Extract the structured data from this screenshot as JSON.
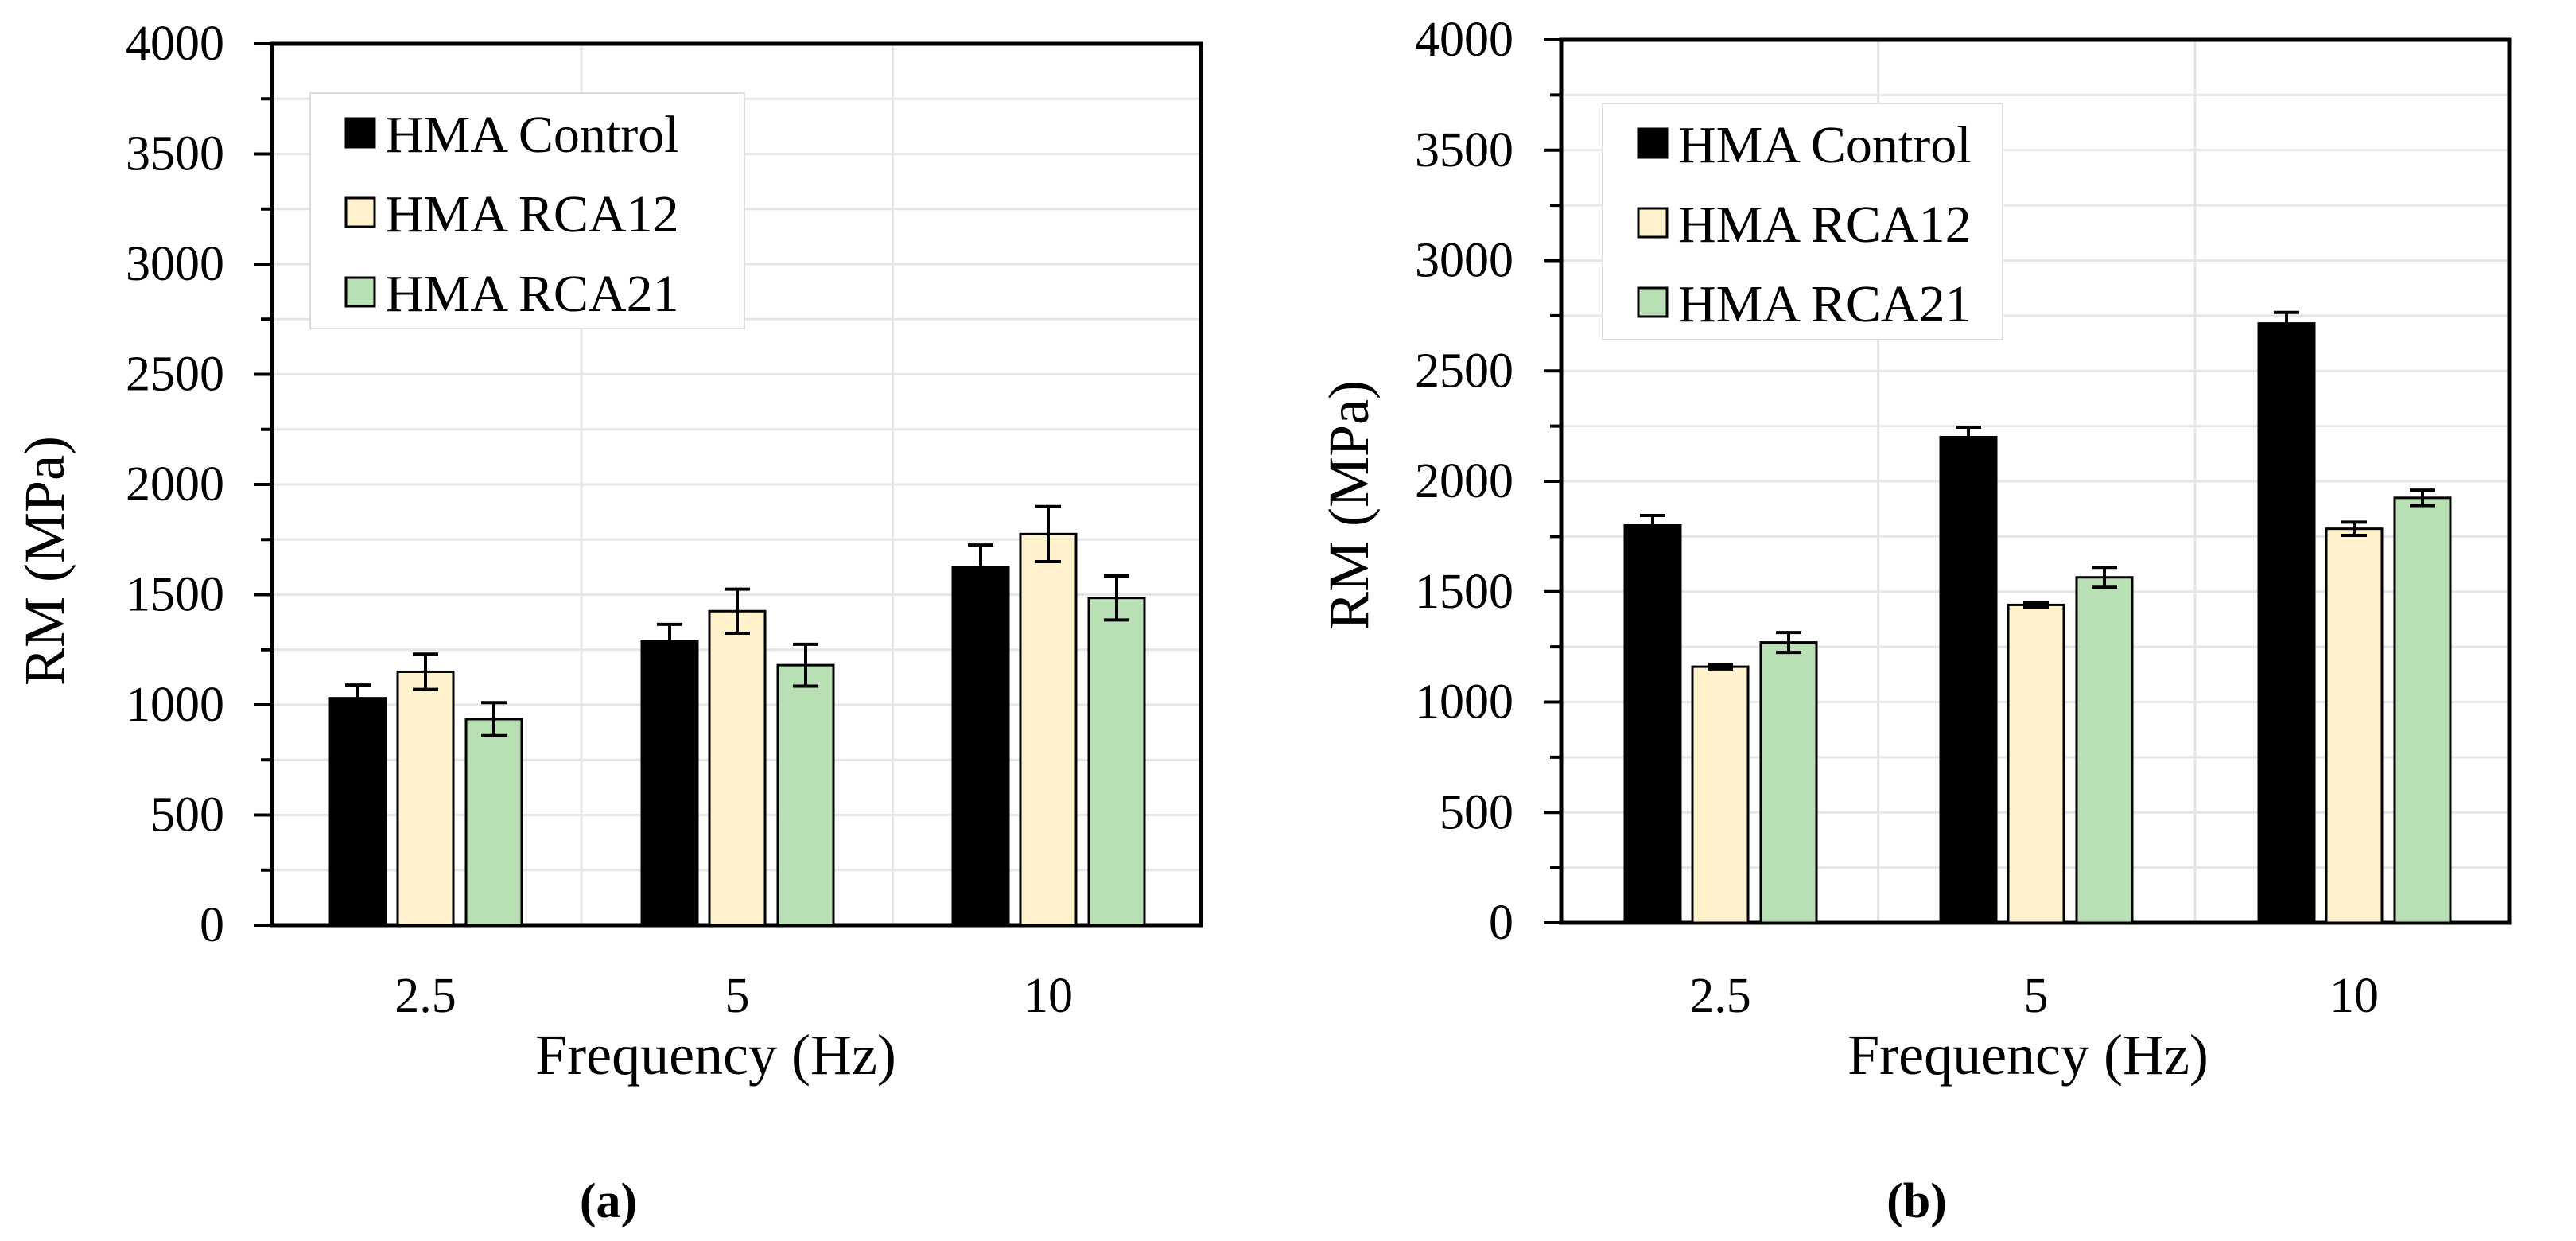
{
  "chart_data": [
    {
      "type": "bar",
      "panel_label": "(a)",
      "xlabel": "Frequency (Hz)",
      "ylabel": "RM (MPa)",
      "categories": [
        "2.5",
        "5",
        "10"
      ],
      "ylim": [
        0,
        4000
      ],
      "yticks": [
        "0",
        "500",
        "1000",
        "1500",
        "2000",
        "2500",
        "3000",
        "3500",
        "4000"
      ],
      "grid": true,
      "legend_position": "top-left",
      "series": [
        {
          "name": "HMA Control",
          "color": "#000000",
          "values": [
            1030,
            1290,
            1625
          ],
          "errors": [
            60,
            75,
            100
          ]
        },
        {
          "name": "HMA RCA12",
          "color": "#FFF2CC",
          "values": [
            1150,
            1425,
            1775
          ],
          "errors": [
            80,
            100,
            125
          ]
        },
        {
          "name": "HMA RCA21",
          "color": "#B9E0B4",
          "values": [
            935,
            1180,
            1485
          ],
          "errors": [
            75,
            95,
            100
          ]
        }
      ]
    },
    {
      "type": "bar",
      "panel_label": "(b)",
      "xlabel": "Frequency (Hz)",
      "ylabel": "RM (MPa)",
      "categories": [
        "2.5",
        "5",
        "10"
      ],
      "ylim": [
        0,
        4000
      ],
      "yticks": [
        "0",
        "500",
        "1000",
        "1500",
        "2000",
        "2500",
        "3000",
        "3500",
        "4000"
      ],
      "grid": true,
      "legend_position": "top-left",
      "series": [
        {
          "name": "HMA Control",
          "color": "#000000",
          "values": [
            1800,
            2200,
            2715
          ],
          "errors": [
            45,
            45,
            50
          ]
        },
        {
          "name": "HMA RCA12",
          "color": "#FFF2CC",
          "values": [
            1160,
            1440,
            1785
          ],
          "errors": [
            10,
            10,
            30
          ]
        },
        {
          "name": "HMA RCA21",
          "color": "#B9E0B4",
          "values": [
            1270,
            1565,
            1925
          ],
          "errors": [
            45,
            45,
            35
          ]
        }
      ]
    }
  ]
}
